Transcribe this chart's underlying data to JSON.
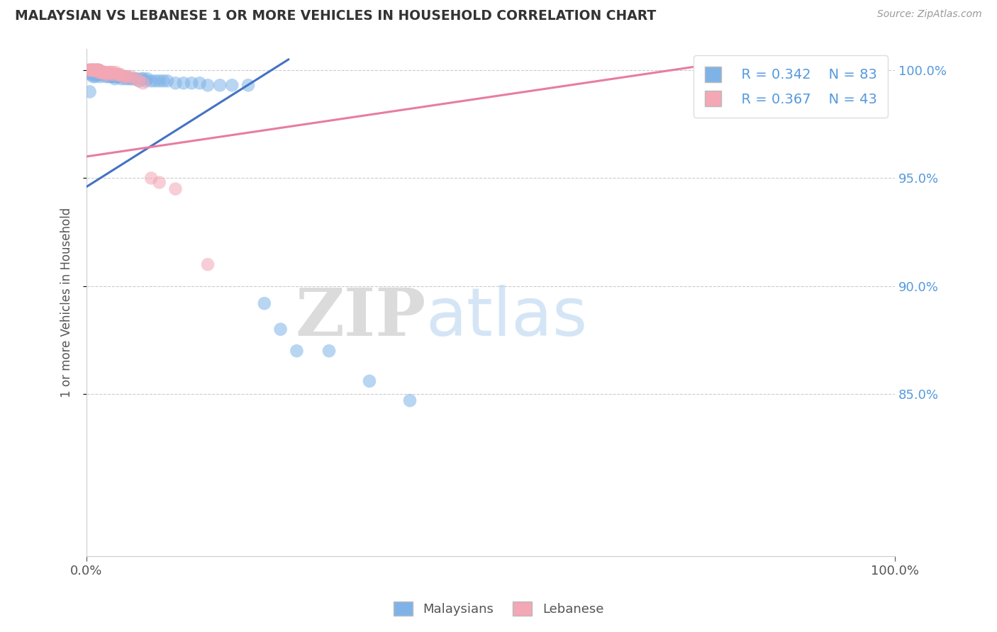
{
  "title": "MALAYSIAN VS LEBANESE 1 OR MORE VEHICLES IN HOUSEHOLD CORRELATION CHART",
  "source_text": "Source: ZipAtlas.com",
  "ylabel": "1 or more Vehicles in Household",
  "xlim": [
    0.0,
    1.0
  ],
  "ylim": [
    0.775,
    1.01
  ],
  "yticks": [
    0.85,
    0.9,
    0.95,
    1.0
  ],
  "ytick_labels": [
    "85.0%",
    "90.0%",
    "95.0%",
    "100.0%"
  ],
  "xticks": [
    0.0,
    1.0
  ],
  "xtick_labels": [
    "0.0%",
    "100.0%"
  ],
  "legend_r_blue": "R = 0.342",
  "legend_n_blue": "N = 83",
  "legend_r_pink": "R = 0.367",
  "legend_n_pink": "N = 43",
  "blue_color": "#7FB3E8",
  "pink_color": "#F4A7B5",
  "blue_line_color": "#4472C4",
  "pink_line_color": "#E87CA0",
  "watermark_zip": "ZIP",
  "watermark_atlas": "atlas",
  "legend_label_blue": "Malaysians",
  "legend_label_pink": "Lebanese",
  "background_color": "#ffffff",
  "malaysians_x": [
    0.003,
    0.004,
    0.004,
    0.005,
    0.005,
    0.006,
    0.006,
    0.007,
    0.007,
    0.008,
    0.008,
    0.009,
    0.009,
    0.01,
    0.01,
    0.011,
    0.011,
    0.012,
    0.012,
    0.013,
    0.013,
    0.014,
    0.014,
    0.015,
    0.015,
    0.016,
    0.017,
    0.017,
    0.018,
    0.018,
    0.019,
    0.02,
    0.021,
    0.022,
    0.023,
    0.024,
    0.025,
    0.026,
    0.027,
    0.028,
    0.03,
    0.03,
    0.031,
    0.033,
    0.034,
    0.035,
    0.037,
    0.038,
    0.04,
    0.042,
    0.043,
    0.045,
    0.048,
    0.05,
    0.052,
    0.055,
    0.058,
    0.06,
    0.062,
    0.065,
    0.068,
    0.07,
    0.073,
    0.075,
    0.08,
    0.085,
    0.09,
    0.095,
    0.1,
    0.11,
    0.12,
    0.13,
    0.14,
    0.15,
    0.165,
    0.18,
    0.2,
    0.22,
    0.24,
    0.26,
    0.3,
    0.35,
    0.4
  ],
  "malaysians_y": [
    1.0,
    1.0,
    0.99,
    1.0,
    0.998,
    1.0,
    0.999,
    1.0,
    0.998,
    1.0,
    0.997,
    1.0,
    0.999,
    1.0,
    0.998,
    0.999,
    0.997,
    1.0,
    0.998,
    1.0,
    0.999,
    1.0,
    0.998,
    1.0,
    0.999,
    0.998,
    0.999,
    0.997,
    0.999,
    0.998,
    0.999,
    0.998,
    0.999,
    0.998,
    0.998,
    0.997,
    0.998,
    0.998,
    0.997,
    0.998,
    0.998,
    0.997,
    0.997,
    0.997,
    0.997,
    0.996,
    0.997,
    0.997,
    0.997,
    0.997,
    0.996,
    0.997,
    0.996,
    0.997,
    0.996,
    0.996,
    0.996,
    0.996,
    0.996,
    0.995,
    0.996,
    0.996,
    0.995,
    0.996,
    0.995,
    0.995,
    0.995,
    0.995,
    0.995,
    0.994,
    0.994,
    0.994,
    0.994,
    0.993,
    0.993,
    0.993,
    0.993,
    0.892,
    0.88,
    0.87,
    0.87,
    0.856,
    0.847
  ],
  "lebanese_x": [
    0.003,
    0.005,
    0.006,
    0.007,
    0.008,
    0.009,
    0.01,
    0.011,
    0.012,
    0.013,
    0.014,
    0.015,
    0.015,
    0.016,
    0.017,
    0.018,
    0.019,
    0.02,
    0.021,
    0.022,
    0.023,
    0.025,
    0.027,
    0.028,
    0.03,
    0.032,
    0.034,
    0.036,
    0.038,
    0.04,
    0.042,
    0.045,
    0.048,
    0.05,
    0.055,
    0.06,
    0.065,
    0.07,
    0.08,
    0.09,
    0.11,
    0.15,
    0.76
  ],
  "lebanese_y": [
    1.0,
    1.0,
    1.0,
    1.0,
    1.0,
    1.0,
    1.0,
    1.0,
    1.0,
    1.0,
    1.0,
    1.0,
    0.999,
    1.0,
    0.999,
    0.999,
    0.999,
    0.999,
    0.999,
    0.999,
    0.998,
    0.999,
    0.998,
    0.999,
    0.999,
    0.999,
    0.998,
    0.999,
    0.998,
    0.998,
    0.998,
    0.997,
    0.997,
    0.997,
    0.997,
    0.996,
    0.995,
    0.994,
    0.95,
    0.948,
    0.945,
    0.91,
    1.0
  ],
  "blue_trendline_x": [
    0.0,
    0.25
  ],
  "blue_trendline_y": [
    0.946,
    1.005
  ],
  "pink_trendline_x": [
    0.0,
    0.76
  ],
  "pink_trendline_y": [
    0.96,
    1.002
  ]
}
